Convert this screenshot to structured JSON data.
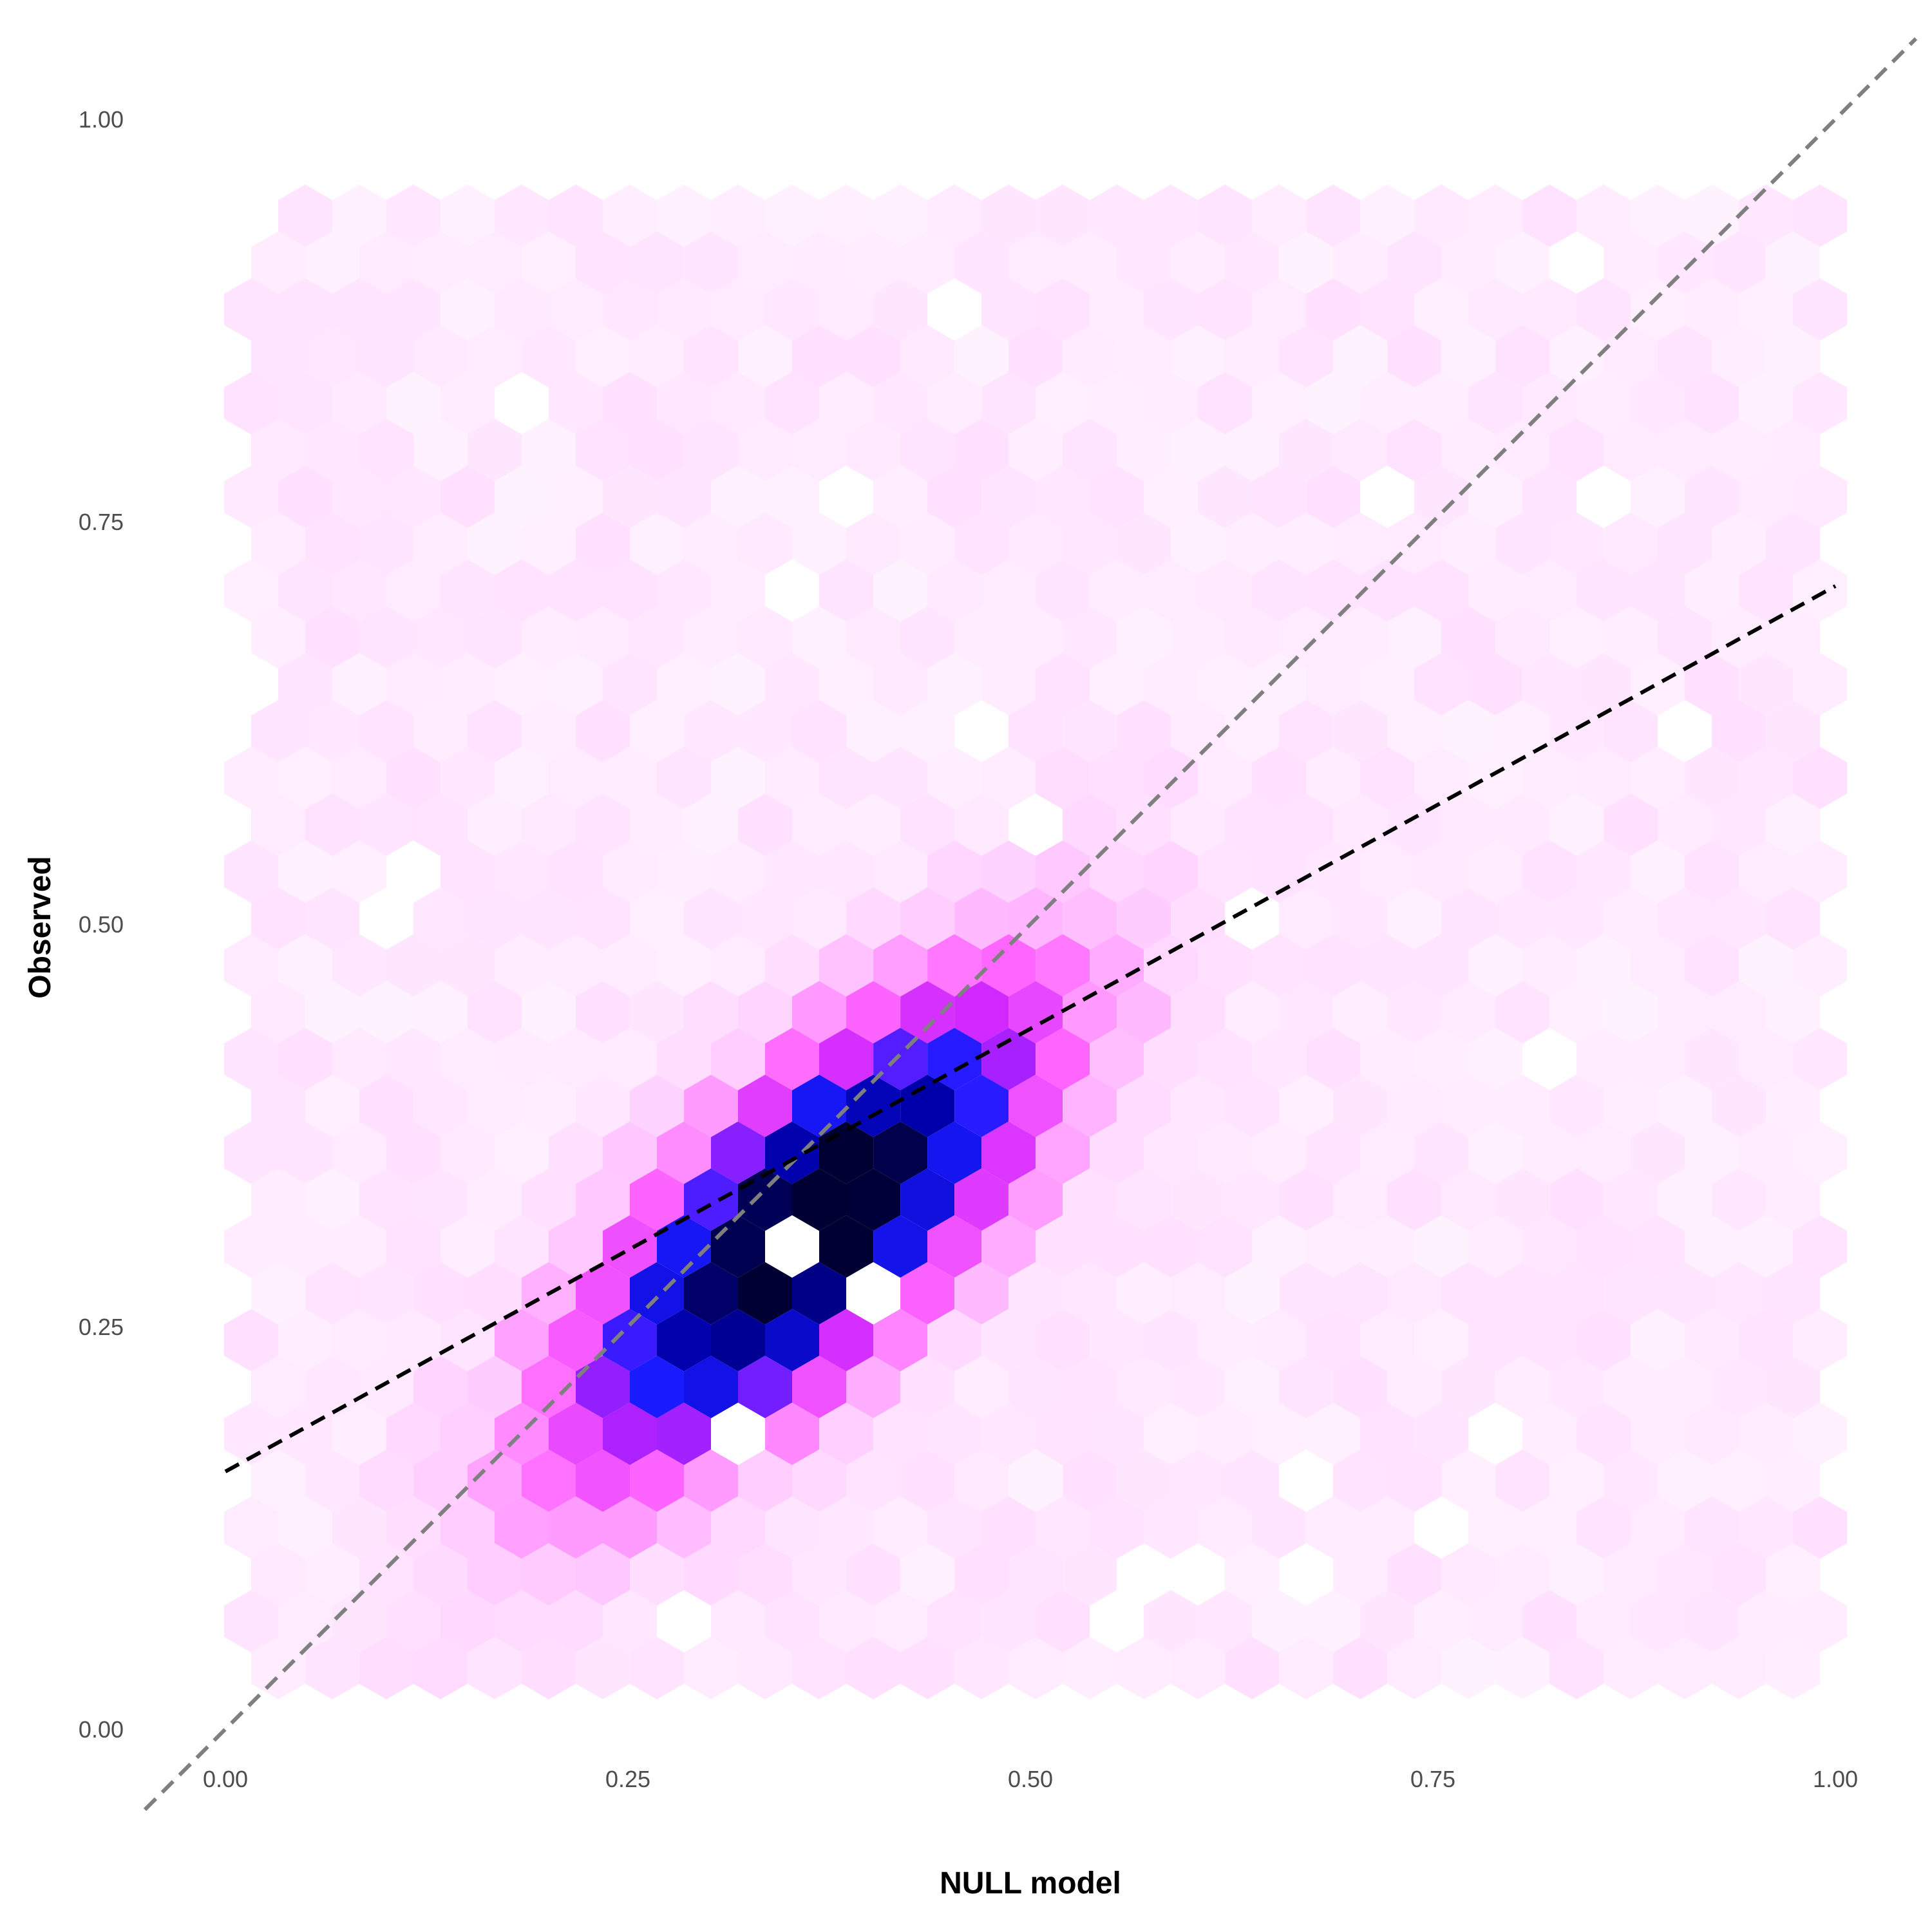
{
  "chart_data": {
    "type": "heatmap",
    "subtype": "hexbin",
    "title": "",
    "xlabel": "NULL model",
    "ylabel": "Observed",
    "xlim": [
      -0.05,
      1.05
    ],
    "ylim": [
      -0.05,
      1.05
    ],
    "x_ticks": [
      0.0,
      0.25,
      0.5,
      0.75,
      1.0
    ],
    "x_tick_labels": [
      "0.00",
      "0.25",
      "0.50",
      "0.75",
      "1.00"
    ],
    "y_ticks": [
      0.0,
      0.25,
      0.5,
      0.75,
      1.0
    ],
    "y_tick_labels": [
      "0.00",
      "0.25",
      "0.50",
      "0.75",
      "1.00"
    ],
    "grid": false,
    "legend": "none",
    "density_peak": {
      "x": 0.36,
      "y": 0.31
    },
    "density_spread": {
      "major": 0.13,
      "minor": 0.05
    },
    "color_scale": [
      "#ffffff",
      "#ffccff",
      "#ff66ff",
      "#cc22ff",
      "#1a1aff",
      "#0000aa",
      "#000033"
    ],
    "reference_lines": [
      {
        "name": "identity",
        "slope": 1.0,
        "intercept": 0.0,
        "x_range": [
          -0.05,
          1.05
        ],
        "color": "#7f7f7f",
        "style": "dashed"
      },
      {
        "name": "fit",
        "slope": 0.55,
        "intercept": 0.16,
        "x_range": [
          0.0,
          1.0
        ],
        "color": "#000000",
        "style": "dashed"
      }
    ]
  }
}
